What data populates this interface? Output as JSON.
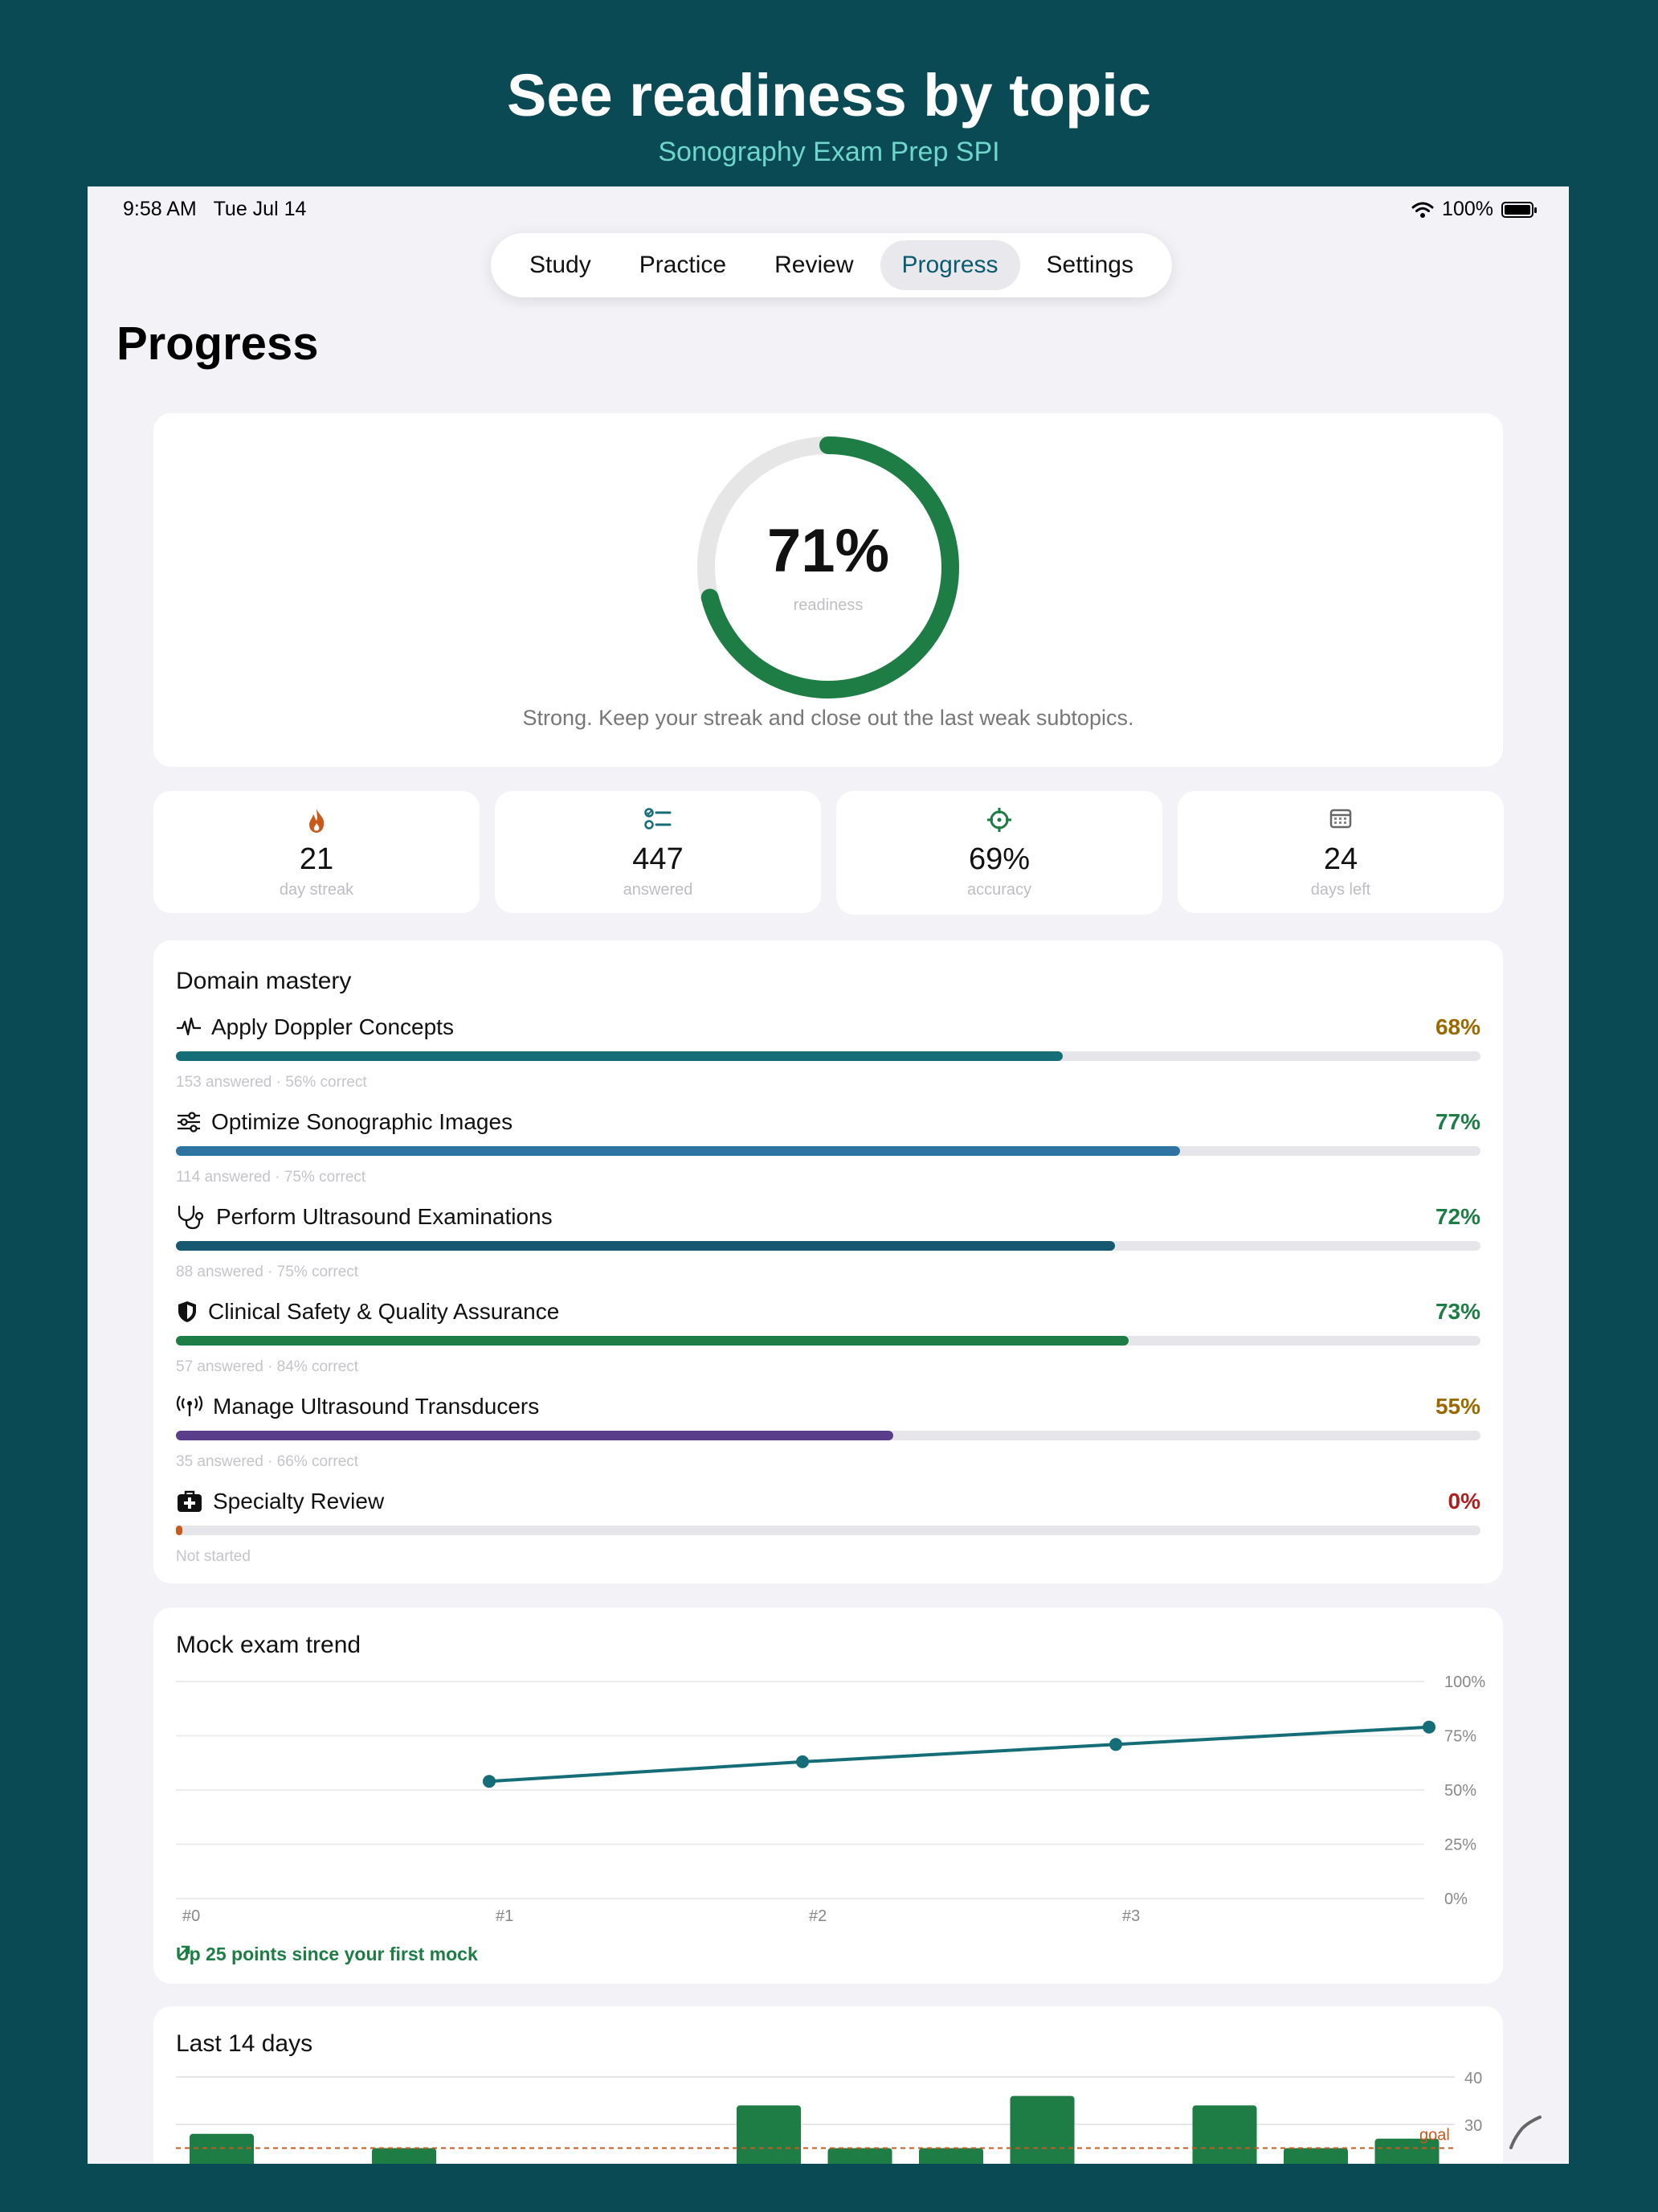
{
  "header": {
    "title": "See readiness by topic",
    "subtitle": "Sonography Exam Prep SPI"
  },
  "status_bar": {
    "time": "9:58 AM",
    "date": "Tue Jul 14",
    "battery": "100%"
  },
  "tabs": [
    {
      "label": "Study",
      "active": false
    },
    {
      "label": "Practice",
      "active": false
    },
    {
      "label": "Review",
      "active": false
    },
    {
      "label": "Progress",
      "active": true
    },
    {
      "label": "Settings",
      "active": false
    }
  ],
  "page_title": "Progress",
  "readiness": {
    "percent_label": "71%",
    "value": 0.71,
    "label": "readiness",
    "message": "Strong. Keep your streak and close out the last weak subtopics.",
    "ring_color": "#1e7d45",
    "track_color": "#e6e6e6"
  },
  "stats": [
    {
      "icon": "flame-icon",
      "value": "21",
      "label": "day streak"
    },
    {
      "icon": "checklist-icon",
      "value": "447",
      "label": "answered"
    },
    {
      "icon": "target-icon",
      "value": "69%",
      "label": "accuracy"
    },
    {
      "icon": "calendar-icon",
      "value": "24",
      "label": "days left"
    }
  ],
  "domain_mastery": {
    "title": "Domain mastery",
    "items": [
      {
        "icon": "waveform-icon",
        "name": "Apply Doppler Concepts",
        "percent": "68%",
        "value": 0.68,
        "meta": "153 answered · 56% correct",
        "bar_color": "#156d78",
        "pct_color": "#9a6a00"
      },
      {
        "icon": "sliders-icon",
        "name": "Optimize Sonographic Images",
        "percent": "77%",
        "value": 0.77,
        "meta": "114 answered · 75% correct",
        "bar_color": "#2f73a3",
        "pct_color": "#1e7d45"
      },
      {
        "icon": "stethoscope-icon",
        "name": "Perform Ultrasound Examinations",
        "percent": "72%",
        "value": 0.72,
        "meta": "88 answered · 75% correct",
        "bar_color": "#16586f",
        "pct_color": "#1e7d45"
      },
      {
        "icon": "shield-icon",
        "name": "Clinical Safety & Quality Assurance",
        "percent": "73%",
        "value": 0.73,
        "meta": "57 answered · 84% correct",
        "bar_color": "#1e7d45",
        "pct_color": "#1e7d45"
      },
      {
        "icon": "antenna-icon",
        "name": "Manage Ultrasound Transducers",
        "percent": "55%",
        "value": 0.55,
        "meta": "35 answered · 66% correct",
        "bar_color": "#5a3d8a",
        "pct_color": "#9a6a00"
      },
      {
        "icon": "medkit-icon",
        "name": "Specialty Review",
        "percent": "0%",
        "value": 0.0,
        "meta": "Not started",
        "bar_color": "#c85a1c",
        "pct_color": "#b01e1e"
      }
    ]
  },
  "mock_trend": {
    "title": "Mock exam trend",
    "note": "Up 25 points since your first mock",
    "chart_data": {
      "type": "line",
      "x_labels": [
        "#0",
        "#1",
        "#2",
        "#3"
      ],
      "y_ticks": [
        "0%",
        "25%",
        "50%",
        "75%",
        "100%"
      ],
      "ylim": [
        0,
        100
      ],
      "points": [
        {
          "x": 1,
          "y": 54
        },
        {
          "x": 2,
          "y": 63
        },
        {
          "x": 3,
          "y": 71
        },
        {
          "x": 4,
          "y": 79
        }
      ],
      "line_color": "#156d78"
    }
  },
  "last_14_days": {
    "title": "Last 14 days",
    "goal_label": "goal",
    "chart_data": {
      "type": "bar",
      "y_ticks": [
        "30",
        "40"
      ],
      "goal": 25,
      "values": [
        28,
        0,
        25,
        0,
        0,
        0,
        34,
        25,
        25,
        36,
        0,
        34,
        25,
        27
      ],
      "bar_color": "#1e7d45",
      "goal_color": "#c85a1c"
    }
  }
}
